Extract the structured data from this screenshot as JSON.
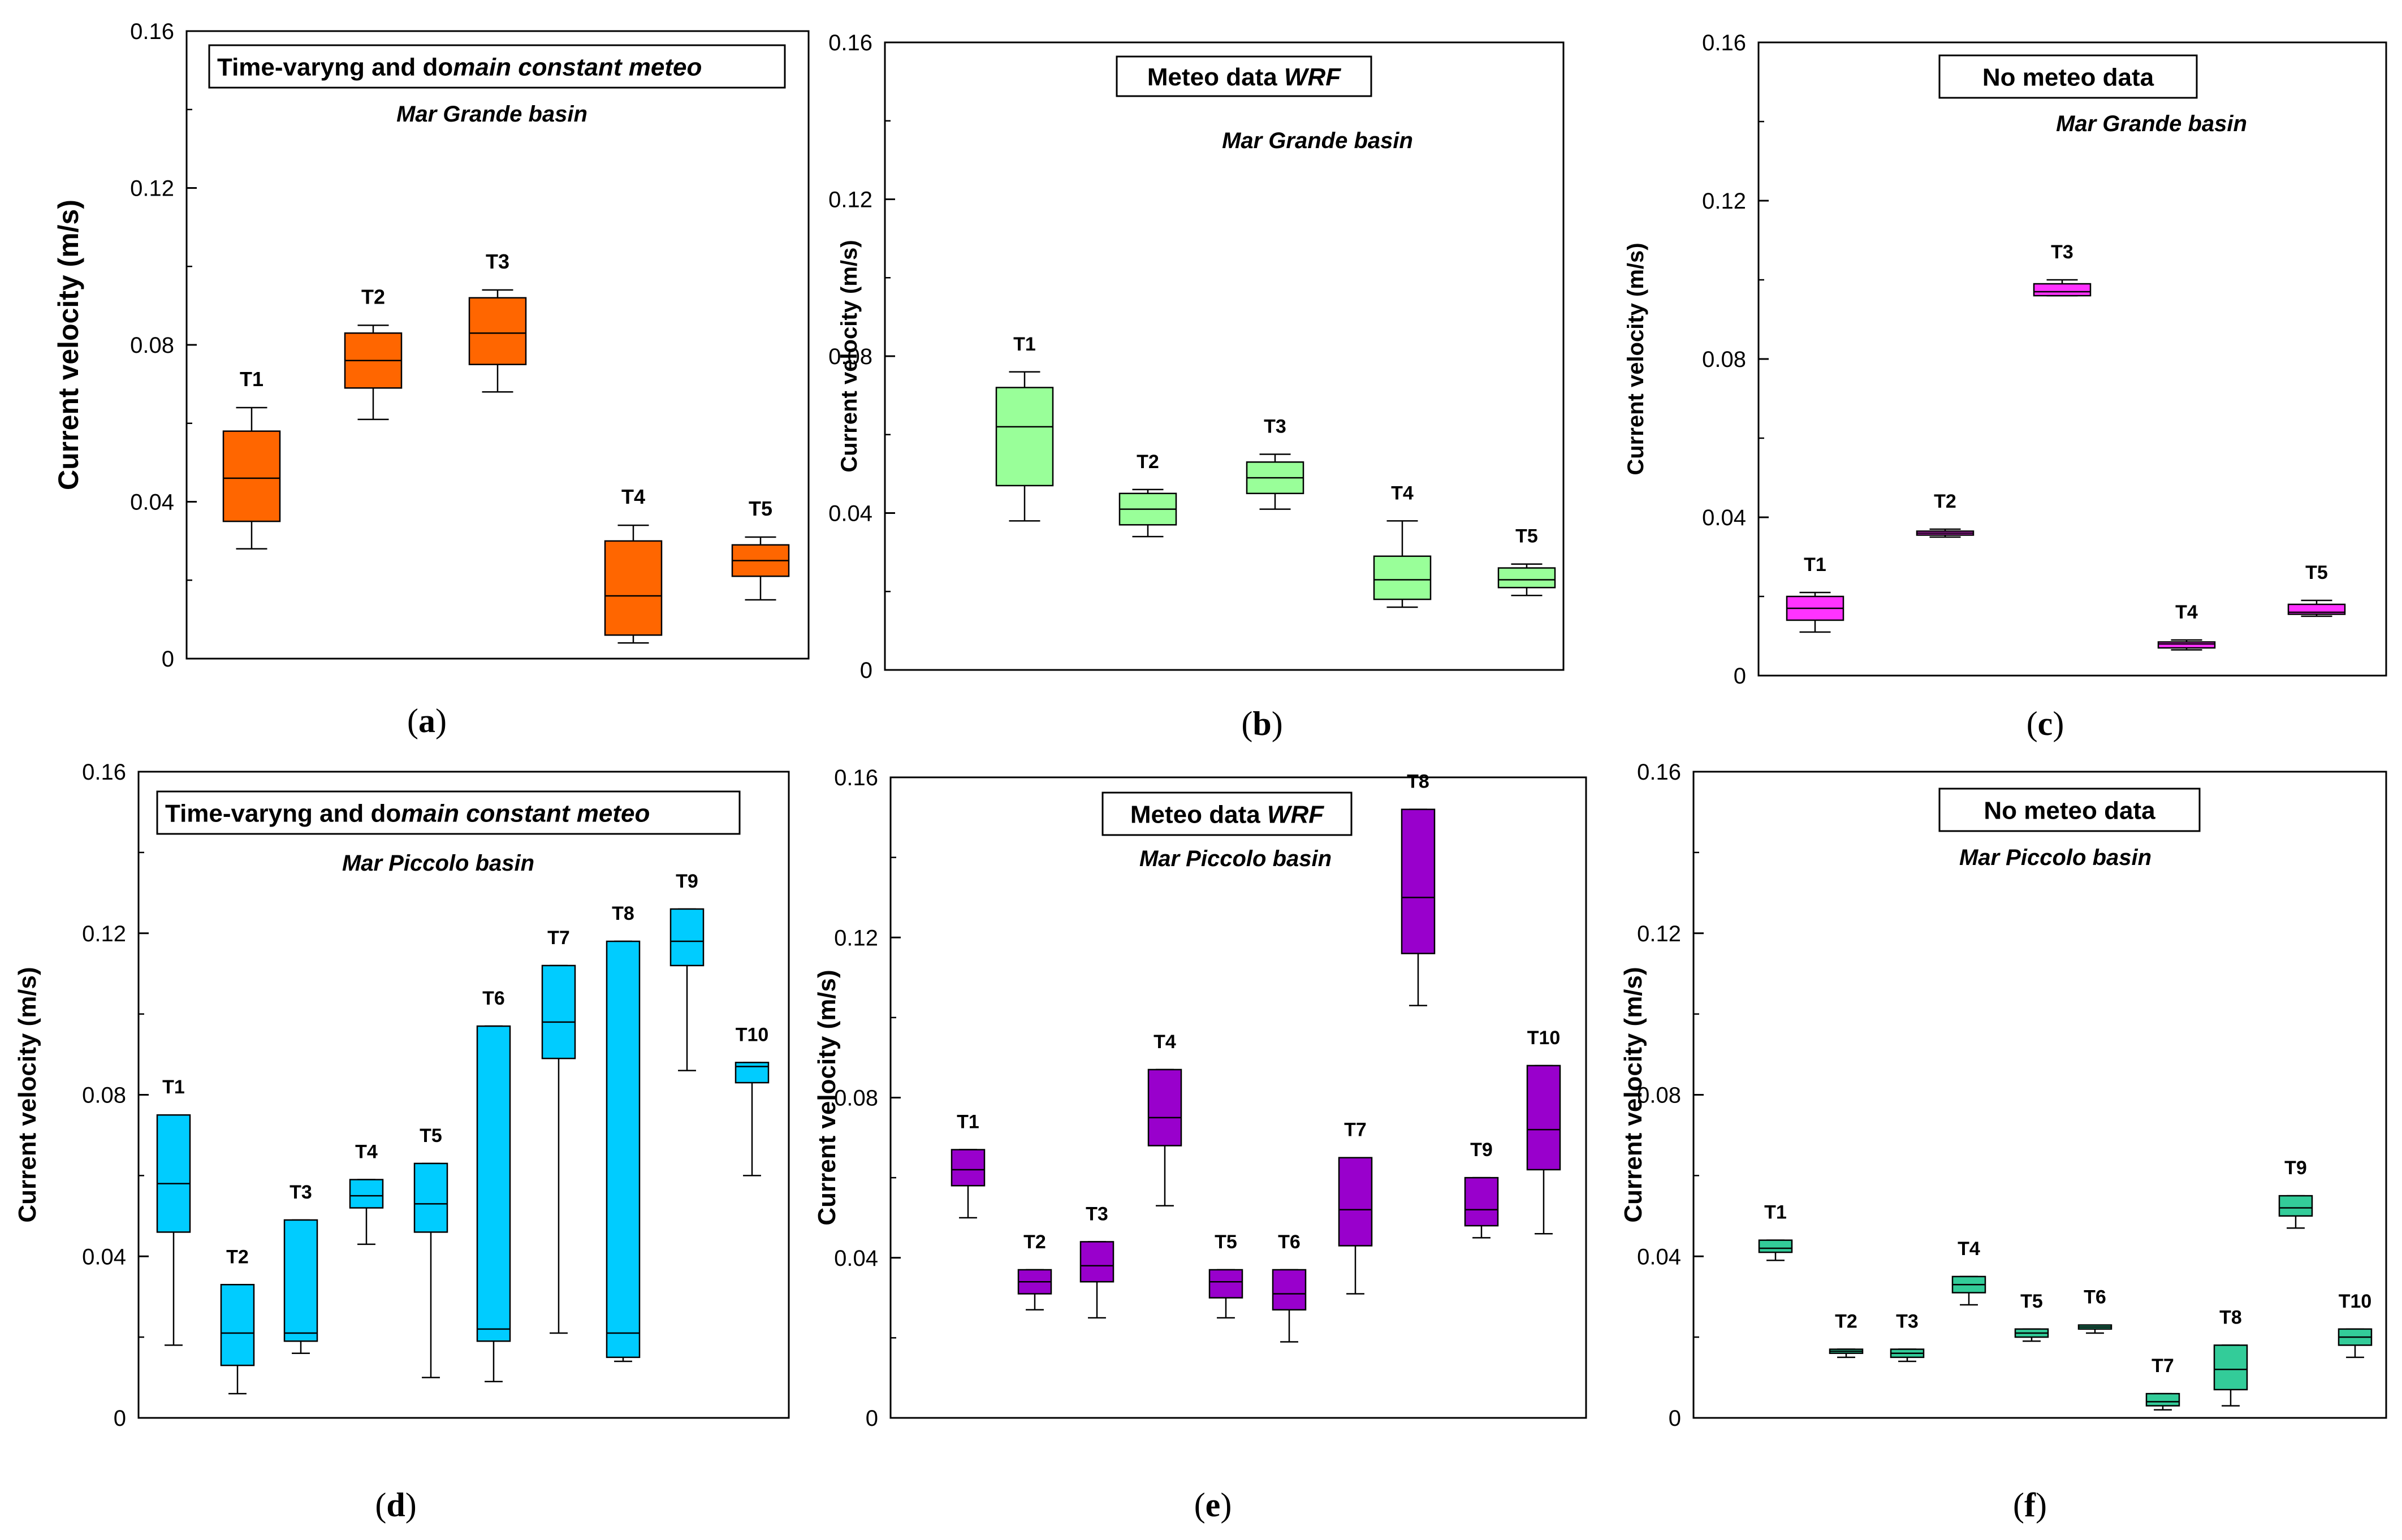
{
  "figure": {
    "y_axis_label": "Current velocity (m/s)"
  },
  "chart_data": [
    {
      "type": "box",
      "panel_label": "a",
      "title": "Time-varyng and domain constant meteo",
      "title_parts": [
        {
          "text": "Time-varyng and do",
          "italic": false
        },
        {
          "text": "main constant meteo",
          "italic": true
        }
      ],
      "subtitle": "Mar Grande basin",
      "ylabel": "Current velocity (m/s)",
      "ylim": [
        0,
        0.16
      ],
      "yticks": [
        "0",
        "0.04",
        "0.08",
        "0.12",
        "0.16"
      ],
      "fill": "#FF6600",
      "boxes": [
        {
          "label": "T1",
          "min": 0.028,
          "q1": 0.035,
          "median": 0.046,
          "q3": 0.058,
          "max": 0.064
        },
        {
          "label": "T2",
          "min": 0.061,
          "q1": 0.069,
          "median": 0.076,
          "q3": 0.083,
          "max": 0.085
        },
        {
          "label": "T3",
          "min": 0.068,
          "q1": 0.075,
          "median": 0.083,
          "q3": 0.092,
          "max": 0.094
        },
        {
          "label": "T4",
          "min": 0.004,
          "q1": 0.006,
          "median": 0.016,
          "q3": 0.03,
          "max": 0.034
        },
        {
          "label": "T5",
          "min": 0.015,
          "q1": 0.021,
          "median": 0.025,
          "q3": 0.029,
          "max": 0.031
        }
      ]
    },
    {
      "type": "box",
      "panel_label": "b",
      "title": "Meteo data WRF",
      "title_parts": [
        {
          "text": "Meteo data ",
          "italic": false
        },
        {
          "text": "WRF",
          "italic": true
        }
      ],
      "subtitle": "Mar Grande basin",
      "ylabel": "Current velocity (m/s)",
      "ylim": [
        0,
        0.16
      ],
      "yticks": [
        "0",
        "0.04",
        "0.08",
        "0.12",
        "0.16"
      ],
      "fill": "#99FF99",
      "boxes": [
        {
          "label": "T1",
          "min": 0.038,
          "q1": 0.047,
          "median": 0.062,
          "q3": 0.072,
          "max": 0.076
        },
        {
          "label": "T2",
          "min": 0.034,
          "q1": 0.037,
          "median": 0.041,
          "q3": 0.045,
          "max": 0.046
        },
        {
          "label": "T3",
          "min": 0.041,
          "q1": 0.045,
          "median": 0.049,
          "q3": 0.053,
          "max": 0.055
        },
        {
          "label": "T4",
          "min": 0.016,
          "q1": 0.018,
          "median": 0.023,
          "q3": 0.029,
          "max": 0.038
        },
        {
          "label": "T5",
          "min": 0.019,
          "q1": 0.021,
          "median": 0.023,
          "q3": 0.026,
          "max": 0.027
        }
      ]
    },
    {
      "type": "box",
      "panel_label": "c",
      "title": "No meteo data",
      "title_parts": [
        {
          "text": "No meteo data",
          "italic": false
        }
      ],
      "subtitle": "Mar Grande basin",
      "ylabel": "Current velocity (m/s)",
      "ylim": [
        0,
        0.16
      ],
      "yticks": [
        "0",
        "0.04",
        "0.08",
        "0.12",
        "0.16"
      ],
      "fill": "#FF33FF",
      "boxes": [
        {
          "label": "T1",
          "min": 0.011,
          "q1": 0.014,
          "median": 0.017,
          "q3": 0.02,
          "max": 0.021
        },
        {
          "label": "T2",
          "min": 0.035,
          "q1": 0.0355,
          "median": 0.036,
          "q3": 0.0365,
          "max": 0.037
        },
        {
          "label": "T3",
          "min": 0.096,
          "q1": 0.096,
          "median": 0.097,
          "q3": 0.099,
          "max": 0.1
        },
        {
          "label": "T4",
          "min": 0.0065,
          "q1": 0.007,
          "median": 0.008,
          "q3": 0.0085,
          "max": 0.009
        },
        {
          "label": "T5",
          "min": 0.015,
          "q1": 0.0155,
          "median": 0.016,
          "q3": 0.018,
          "max": 0.019
        }
      ]
    },
    {
      "type": "box",
      "panel_label": "d",
      "title": "Time-varyng and domain constant meteo",
      "title_parts": [
        {
          "text": "Time-varyng and do",
          "italic": false
        },
        {
          "text": "main constant meteo",
          "italic": true
        }
      ],
      "subtitle": "Mar Piccolo basin",
      "ylabel": "Current velocity (m/s)",
      "ylim": [
        0,
        0.16
      ],
      "yticks": [
        "0",
        "0.04",
        "0.08",
        "0.12",
        "0.16"
      ],
      "fill": "#00CCFF",
      "boxes": [
        {
          "label": "T1",
          "min": 0.018,
          "q1": 0.046,
          "median": 0.058,
          "q3": 0.075,
          "max": 0.075
        },
        {
          "label": "T2",
          "min": 0.006,
          "q1": 0.013,
          "median": 0.021,
          "q3": 0.033,
          "max": 0.033
        },
        {
          "label": "T3",
          "min": 0.016,
          "q1": 0.019,
          "median": 0.021,
          "q3": 0.049,
          "max": 0.049
        },
        {
          "label": "T4",
          "min": 0.043,
          "q1": 0.052,
          "median": 0.055,
          "q3": 0.059,
          "max": 0.059
        },
        {
          "label": "T5",
          "min": 0.01,
          "q1": 0.046,
          "median": 0.053,
          "q3": 0.063,
          "max": 0.063
        },
        {
          "label": "T6",
          "min": 0.009,
          "q1": 0.019,
          "median": 0.022,
          "q3": 0.097,
          "max": 0.097
        },
        {
          "label": "T7",
          "min": 0.021,
          "q1": 0.089,
          "median": 0.098,
          "q3": 0.112,
          "max": 0.112
        },
        {
          "label": "T8",
          "min": 0.014,
          "q1": 0.015,
          "median": 0.021,
          "q3": 0.118,
          "max": 0.118
        },
        {
          "label": "T9",
          "min": 0.086,
          "q1": 0.112,
          "median": 0.118,
          "q3": 0.126,
          "max": 0.126
        },
        {
          "label": "T10",
          "min": 0.06,
          "q1": 0.083,
          "median": 0.087,
          "q3": 0.088,
          "max": 0.088
        }
      ]
    },
    {
      "type": "box",
      "panel_label": "e",
      "title": "Meteo data WRF",
      "title_parts": [
        {
          "text": "Meteo data ",
          "italic": false
        },
        {
          "text": "WRF",
          "italic": true
        }
      ],
      "subtitle": "Mar Piccolo basin",
      "ylabel": "Current velocity (m/s)",
      "ylim": [
        0,
        0.16
      ],
      "yticks": [
        "0",
        "0.04",
        "0.08",
        "0.12",
        "0.16"
      ],
      "fill": "#9900CC",
      "boxes": [
        {
          "label": "T1",
          "min": 0.05,
          "q1": 0.058,
          "median": 0.062,
          "q3": 0.067,
          "max": 0.067
        },
        {
          "label": "T2",
          "min": 0.027,
          "q1": 0.031,
          "median": 0.034,
          "q3": 0.037,
          "max": 0.037
        },
        {
          "label": "T3",
          "min": 0.025,
          "q1": 0.034,
          "median": 0.038,
          "q3": 0.044,
          "max": 0.044
        },
        {
          "label": "T4",
          "min": 0.053,
          "q1": 0.068,
          "median": 0.075,
          "q3": 0.087,
          "max": 0.087
        },
        {
          "label": "T5",
          "min": 0.025,
          "q1": 0.03,
          "median": 0.034,
          "q3": 0.037,
          "max": 0.037
        },
        {
          "label": "T6",
          "min": 0.019,
          "q1": 0.027,
          "median": 0.031,
          "q3": 0.037,
          "max": 0.037
        },
        {
          "label": "T7",
          "min": 0.031,
          "q1": 0.043,
          "median": 0.052,
          "q3": 0.065,
          "max": 0.065
        },
        {
          "label": "T8",
          "min": 0.103,
          "q1": 0.116,
          "median": 0.13,
          "q3": 0.152,
          "max": 0.152
        },
        {
          "label": "T9",
          "min": 0.045,
          "q1": 0.048,
          "median": 0.052,
          "q3": 0.06,
          "max": 0.06
        },
        {
          "label": "T10",
          "min": 0.046,
          "q1": 0.062,
          "median": 0.072,
          "q3": 0.088,
          "max": 0.088
        }
      ]
    },
    {
      "type": "box",
      "panel_label": "f",
      "title": "No meteo data",
      "title_parts": [
        {
          "text": "No meteo data",
          "italic": false
        }
      ],
      "subtitle": "Mar Piccolo basin",
      "ylabel": "Current velocity (m/s)",
      "ylim": [
        0,
        0.16
      ],
      "yticks": [
        "0",
        "0.04",
        "0.08",
        "0.12",
        "0.16"
      ],
      "fill": "#33CC99",
      "boxes": [
        {
          "label": "T1",
          "min": 0.039,
          "q1": 0.041,
          "median": 0.042,
          "q3": 0.044,
          "max": 0.044
        },
        {
          "label": "T2",
          "min": 0.015,
          "q1": 0.016,
          "median": 0.0165,
          "q3": 0.017,
          "max": 0.017
        },
        {
          "label": "T3",
          "min": 0.014,
          "q1": 0.015,
          "median": 0.016,
          "q3": 0.017,
          "max": 0.017
        },
        {
          "label": "T4",
          "min": 0.028,
          "q1": 0.031,
          "median": 0.033,
          "q3": 0.035,
          "max": 0.035
        },
        {
          "label": "T5",
          "min": 0.019,
          "q1": 0.02,
          "median": 0.021,
          "q3": 0.022,
          "max": 0.022
        },
        {
          "label": "T6",
          "min": 0.021,
          "q1": 0.022,
          "median": 0.0225,
          "q3": 0.023,
          "max": 0.023
        },
        {
          "label": "T7",
          "min": 0.002,
          "q1": 0.003,
          "median": 0.004,
          "q3": 0.006,
          "max": 0.006
        },
        {
          "label": "T8",
          "min": 0.003,
          "q1": 0.007,
          "median": 0.012,
          "q3": 0.018,
          "max": 0.018
        },
        {
          "label": "T9",
          "min": 0.047,
          "q1": 0.05,
          "median": 0.052,
          "q3": 0.055,
          "max": 0.055
        },
        {
          "label": "T10",
          "min": 0.015,
          "q1": 0.018,
          "median": 0.02,
          "q3": 0.022,
          "max": 0.022
        }
      ]
    }
  ]
}
